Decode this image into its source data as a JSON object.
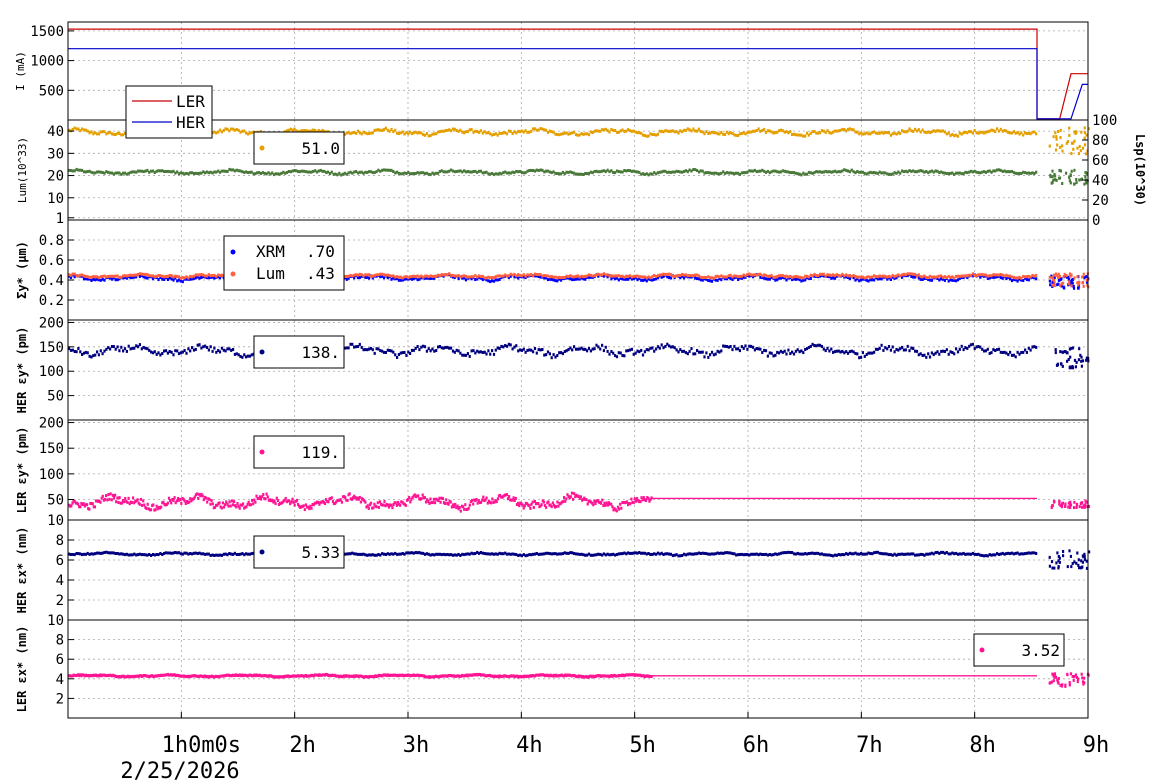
{
  "chart_data": {
    "type": "line",
    "x_axis": {
      "range_hours": [
        0,
        9
      ],
      "ticks": [
        {
          "hour": 1,
          "label": "1h0m0s"
        },
        {
          "hour": 2,
          "label": "2h"
        },
        {
          "hour": 3,
          "label": "3h"
        },
        {
          "hour": 4,
          "label": "4h"
        },
        {
          "hour": 5,
          "label": "5h"
        },
        {
          "hour": 6,
          "label": "6h"
        },
        {
          "hour": 7,
          "label": "7h"
        },
        {
          "hour": 8,
          "label": "8h"
        },
        {
          "hour": 9,
          "label": "9h"
        }
      ],
      "date_label": "2/25/2026"
    },
    "panels": [
      {
        "id": "current",
        "ylabel": "I (mA)",
        "ylim": [
          0,
          1650
        ],
        "yticks": [
          500,
          1000,
          1500
        ],
        "legend": [
          {
            "label": "LER",
            "color": "#cc0000"
          },
          {
            "label": "HER",
            "color": "#0000cc"
          }
        ],
        "series": [
          {
            "name": "LER",
            "color": "#cc0000",
            "style": "line",
            "points": [
              [
                0,
                1530
              ],
              [
                8.55,
                1530
              ],
              [
                8.55,
                20
              ],
              [
                8.75,
                20
              ],
              [
                8.85,
                780
              ],
              [
                9,
                780
              ]
            ]
          },
          {
            "name": "HER",
            "color": "#0000cc",
            "style": "line",
            "points": [
              [
                0,
                1200
              ],
              [
                8.55,
                1200
              ],
              [
                8.55,
                20
              ],
              [
                8.85,
                20
              ],
              [
                8.95,
                600
              ],
              [
                9,
                600
              ]
            ]
          }
        ]
      },
      {
        "id": "lum",
        "ylabel": "Lum(10^33)",
        "ylim": [
          0,
          45
        ],
        "yticks": [
          1,
          10,
          20,
          30,
          40
        ],
        "right_axis": {
          "label": "Lsp(10^30)",
          "ylim": [
            0,
            100
          ],
          "ticks": [
            0,
            20,
            40,
            60,
            80,
            100
          ]
        },
        "legend_value": "51.0",
        "series": [
          {
            "name": "orange",
            "color": "#e5a000",
            "style": "dots",
            "base": 39.5,
            "amp": 1.5,
            "end": 8.55
          },
          {
            "name": "green",
            "color": "#4a7a3a",
            "style": "dots",
            "base": 21.5,
            "amp": 1.0,
            "end": 8.55
          }
        ]
      },
      {
        "id": "sigma",
        "ylabel": "Σy* (µm)",
        "ylim": [
          0,
          1.0
        ],
        "yticks": [
          0.2,
          0.4,
          0.6,
          0.8
        ],
        "legend": [
          {
            "label": "XRM",
            "value": ".70",
            "color": "#0000ff"
          },
          {
            "label": "Lum",
            "value": ".43",
            "color": "#ff6040"
          }
        ],
        "series": [
          {
            "name": "XRM",
            "color": "#0000ff",
            "style": "dots",
            "base": 0.42,
            "amp": 0.03,
            "end": 8.55
          },
          {
            "name": "Lum",
            "color": "#ff6040",
            "style": "dots",
            "base": 0.44,
            "amp": 0.02,
            "end": 8.55
          }
        ]
      },
      {
        "id": "her_ey",
        "ylabel": "HER εy* (pm)",
        "ylim": [
          0,
          205
        ],
        "yticks": [
          50,
          100,
          150,
          200
        ],
        "legend_value": "138.",
        "series": [
          {
            "name": "HER εy*",
            "color": "#000080",
            "style": "dots",
            "base": 142,
            "amp": 12,
            "end": 8.55
          }
        ]
      },
      {
        "id": "ler_ey",
        "ylabel": "LER εy* (pm)",
        "ylim": [
          10,
          205
        ],
        "yticks": [
          10,
          50,
          100,
          150,
          200
        ],
        "legend_value": "119.",
        "series": [
          {
            "name": "LER εy*",
            "color": "#ff1493",
            "style": "dots",
            "base": 45,
            "amp": 14,
            "end": 5.15,
            "flat_value": 52,
            "flat_end": 8.55
          }
        ]
      },
      {
        "id": "her_ex",
        "ylabel": "HER εx* (nm)",
        "ylim": [
          0,
          10
        ],
        "yticks": [
          2,
          4,
          6,
          8
        ],
        "legend_value": "5.33",
        "series": [
          {
            "name": "HER εx*",
            "color": "#000080",
            "style": "dots",
            "base": 6.6,
            "amp": 0.15,
            "end": 8.55
          }
        ]
      },
      {
        "id": "ler_ex",
        "ylabel": "LER εx* (nm)",
        "ylim": [
          0,
          10
        ],
        "yticks": [
          2,
          4,
          6,
          8,
          10
        ],
        "legend_value": "3.52",
        "series": [
          {
            "name": "LER εx*",
            "color": "#ff1493",
            "style": "dots",
            "base": 4.3,
            "amp": 0.12,
            "end": 5.15,
            "flat_value": 4.3,
            "flat_end": 8.55
          }
        ]
      }
    ]
  }
}
